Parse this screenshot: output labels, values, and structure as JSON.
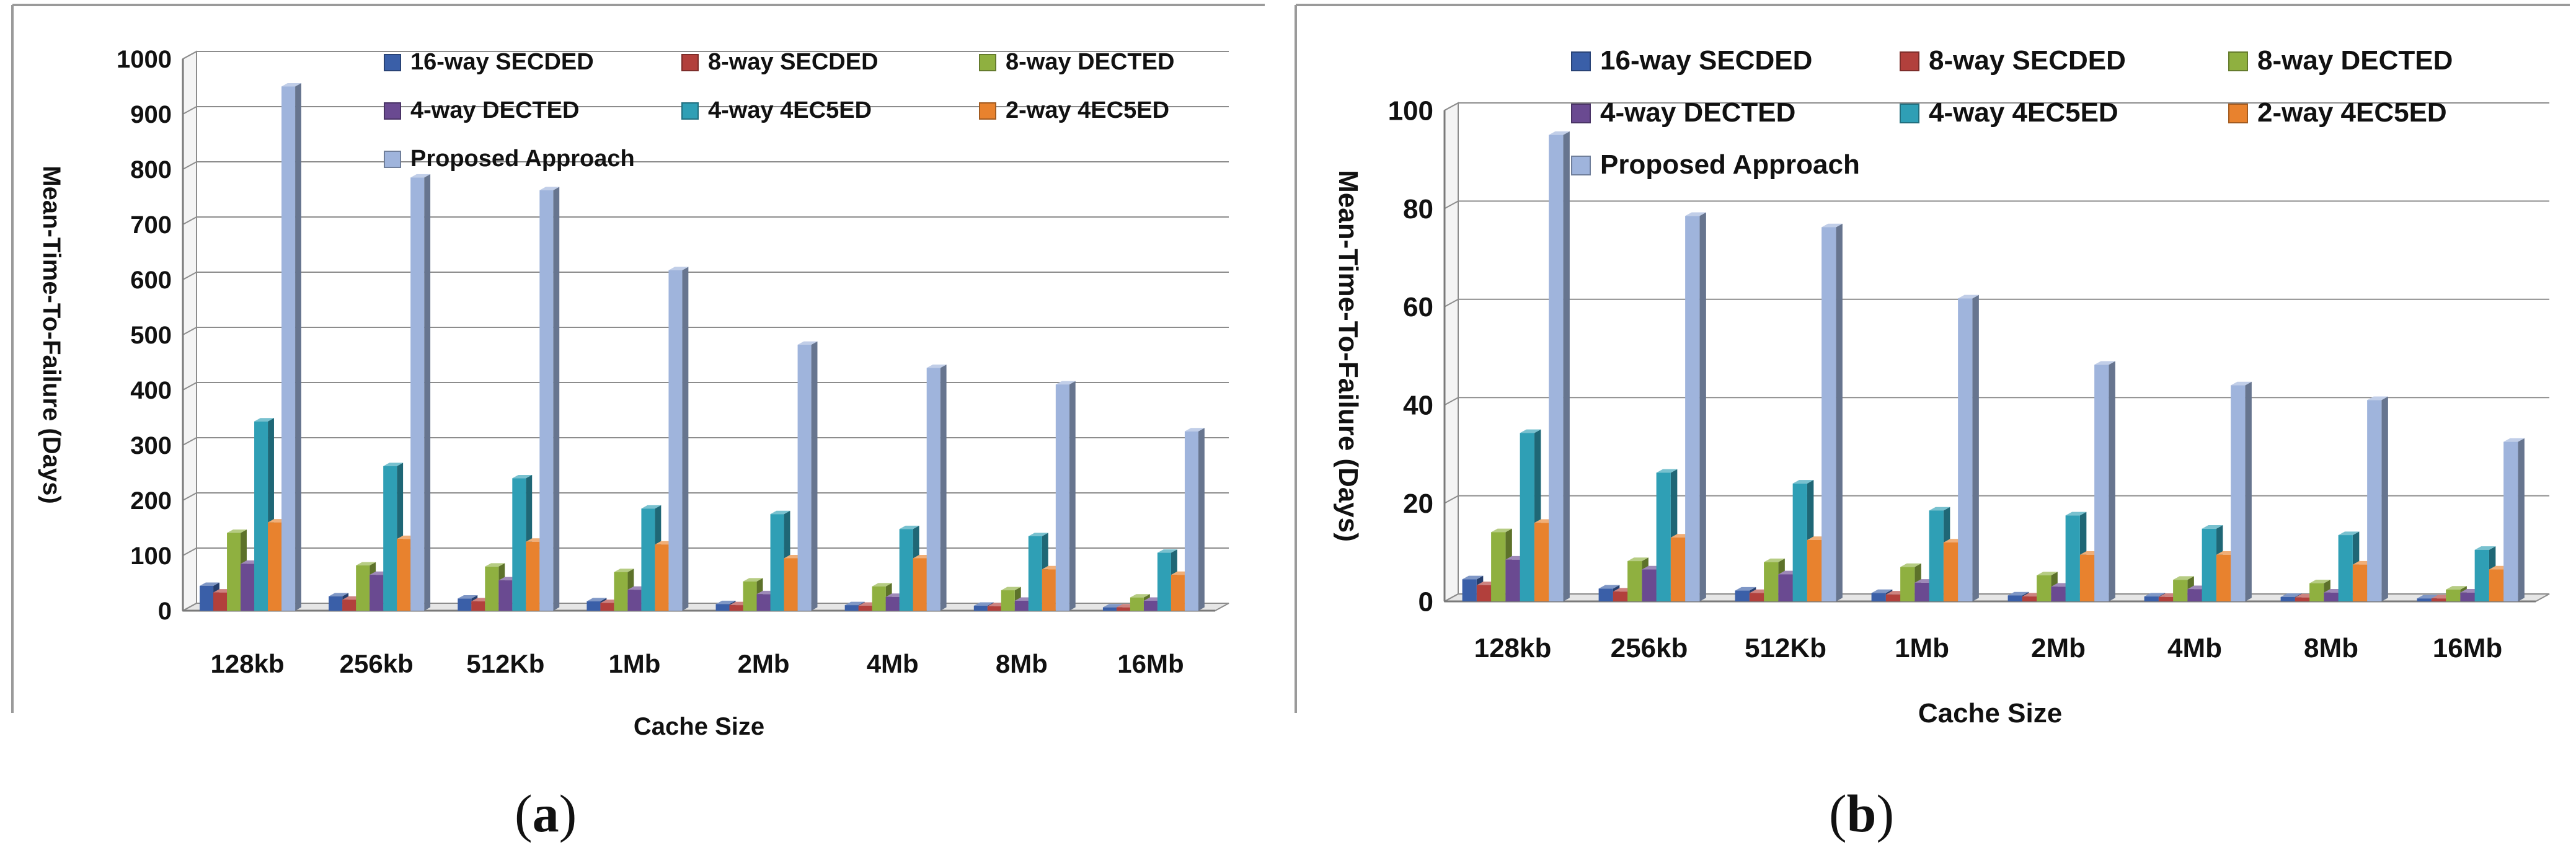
{
  "captions": {
    "a": "a",
    "b": "b",
    "open_paren": "(",
    "close_paren": ")"
  },
  "chart_data": [
    {
      "type": "bar",
      "title": "",
      "xlabel": "Cache Size",
      "ylabel": "Mean-Time-To-Failure (Days)",
      "ylim": [
        0,
        1000
      ],
      "yticks": [
        "0",
        "100",
        "200",
        "300",
        "400",
        "500",
        "600",
        "700",
        "800",
        "900",
        "1000"
      ],
      "grid": true,
      "legend": "top",
      "categories": [
        "128kb",
        "256kb",
        "512Kb",
        "1Mb",
        "2Mb",
        "4Mb",
        "8Mb",
        "16Mb"
      ],
      "series": [
        {
          "name": "16-way SECDED",
          "color": "#3a5fa8",
          "values": [
            45,
            26,
            22,
            17,
            12,
            10,
            9,
            6
          ]
        },
        {
          "name": "8-way SECDED",
          "color": "#b2403c",
          "values": [
            33,
            20,
            17,
            14,
            10,
            9,
            8,
            6
          ]
        },
        {
          "name": "8-way DECTED",
          "color": "#8fb040",
          "values": [
            141,
            82,
            80,
            70,
            53,
            44,
            37,
            24
          ]
        },
        {
          "name": "4-way DECTED",
          "color": "#6a4a91",
          "values": [
            85,
            65,
            55,
            38,
            30,
            25,
            18,
            18
          ]
        },
        {
          "name": "4-way 4EC5ED",
          "color": "#2f9fb5",
          "values": [
            343,
            262,
            240,
            185,
            175,
            148,
            135,
            105
          ]
        },
        {
          "name": "2-way 4EC5ED",
          "color": "#e8822e",
          "values": [
            160,
            130,
            125,
            120,
            95,
            95,
            75,
            65
          ]
        },
        {
          "name": "Proposed Approach",
          "color": "#9fb4dc",
          "values": [
            950,
            785,
            762,
            617,
            482,
            440,
            410,
            325
          ]
        }
      ]
    },
    {
      "type": "bar",
      "title": "",
      "xlabel": "Cache Size",
      "ylabel": "Mean-Time-To-Failure (Days)",
      "ylim": [
        0,
        100
      ],
      "yticks": [
        "0",
        "20",
        "40",
        "60",
        "80",
        "100"
      ],
      "grid": true,
      "legend": "top",
      "categories": [
        "128kb",
        "256kb",
        "512Kb",
        "1Mb",
        "2Mb",
        "4Mb",
        "8Mb",
        "16Mb"
      ],
      "series": [
        {
          "name": "16-way SECDED",
          "color": "#3a5fa8",
          "values": [
            4.5,
            2.6,
            2.2,
            1.7,
            1.2,
            1.0,
            0.9,
            0.6
          ]
        },
        {
          "name": "8-way SECDED",
          "color": "#b2403c",
          "values": [
            3.3,
            2.0,
            1.7,
            1.4,
            1.0,
            0.9,
            0.8,
            0.6
          ]
        },
        {
          "name": "8-way DECTED",
          "color": "#8fb040",
          "values": [
            14.1,
            8.2,
            8.0,
            7.0,
            5.3,
            4.4,
            3.7,
            2.4
          ]
        },
        {
          "name": "4-way DECTED",
          "color": "#6a4a91",
          "values": [
            8.5,
            6.5,
            5.5,
            3.8,
            3.0,
            2.5,
            1.8,
            1.8
          ]
        },
        {
          "name": "4-way 4EC5ED",
          "color": "#2f9fb5",
          "values": [
            34.3,
            26.2,
            24.0,
            18.5,
            17.5,
            14.8,
            13.5,
            10.5
          ]
        },
        {
          "name": "2-way 4EC5ED",
          "color": "#e8822e",
          "values": [
            16.0,
            13.0,
            12.5,
            12.0,
            9.5,
            9.5,
            7.5,
            6.5
          ]
        },
        {
          "name": "Proposed Approach",
          "color": "#9fb4dc",
          "values": [
            95.0,
            78.5,
            76.2,
            61.7,
            48.2,
            44.0,
            41.0,
            32.5
          ]
        }
      ]
    }
  ]
}
